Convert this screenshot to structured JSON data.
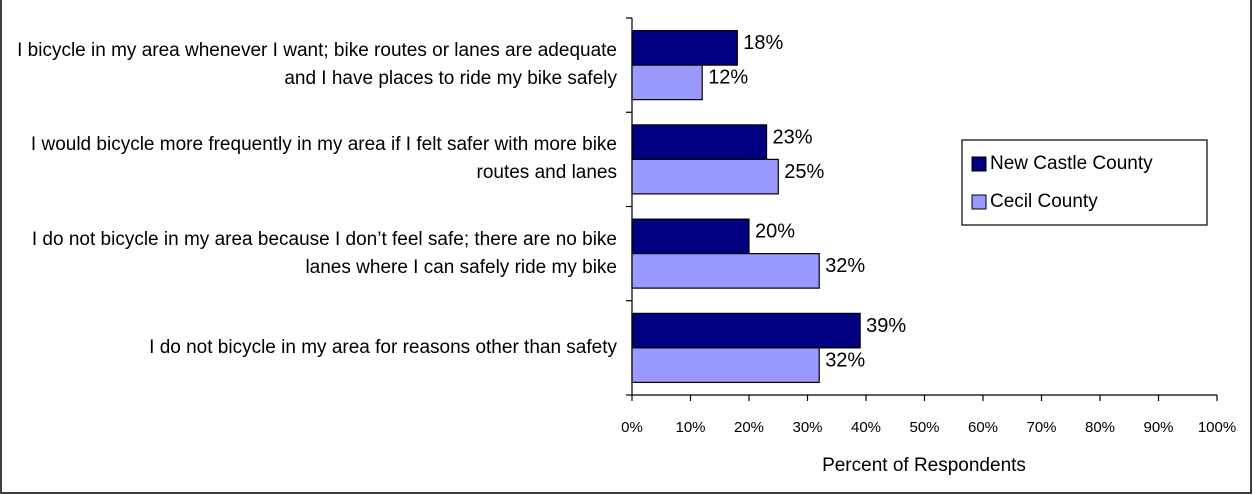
{
  "chart_data": {
    "type": "bar",
    "orientation": "horizontal",
    "categories": [
      "I bicycle in my area whenever I want; bike routes or lanes are adequate and I have places to ride my bike safely",
      "I would bicycle more frequently in my area if I felt safer with more bike routes and lanes",
      "I do not bicycle in my area because I don’t feel safe; there are no bike lanes where I can safely ride my bike",
      "I do not bicycle in my area for reasons other than safety"
    ],
    "series": [
      {
        "name": "New Castle County",
        "color": "#000080",
        "values": [
          18,
          23,
          20,
          39
        ],
        "value_labels": [
          "18%",
          "23%",
          "20%",
          "39%"
        ]
      },
      {
        "name": "Cecil County",
        "color": "#9999ff",
        "values": [
          12,
          25,
          32,
          32
        ],
        "value_labels": [
          "12%",
          "25%",
          "32%",
          "32%"
        ]
      }
    ],
    "x_label": "Percent of Respondents",
    "xlim": [
      0,
      100
    ],
    "xticks": [
      {
        "value": 0,
        "label": "0%"
      },
      {
        "value": 10,
        "label": "10%"
      },
      {
        "value": 20,
        "label": "20%"
      },
      {
        "value": 30,
        "label": "30%"
      },
      {
        "value": 40,
        "label": "40%"
      },
      {
        "value": 50,
        "label": "50%"
      },
      {
        "value": 60,
        "label": "60%"
      },
      {
        "value": 70,
        "label": "70%"
      },
      {
        "value": 80,
        "label": "80%"
      },
      {
        "value": 90,
        "label": "90%"
      },
      {
        "value": 100,
        "label": "100%"
      }
    ],
    "grid": false,
    "legend": "right"
  }
}
